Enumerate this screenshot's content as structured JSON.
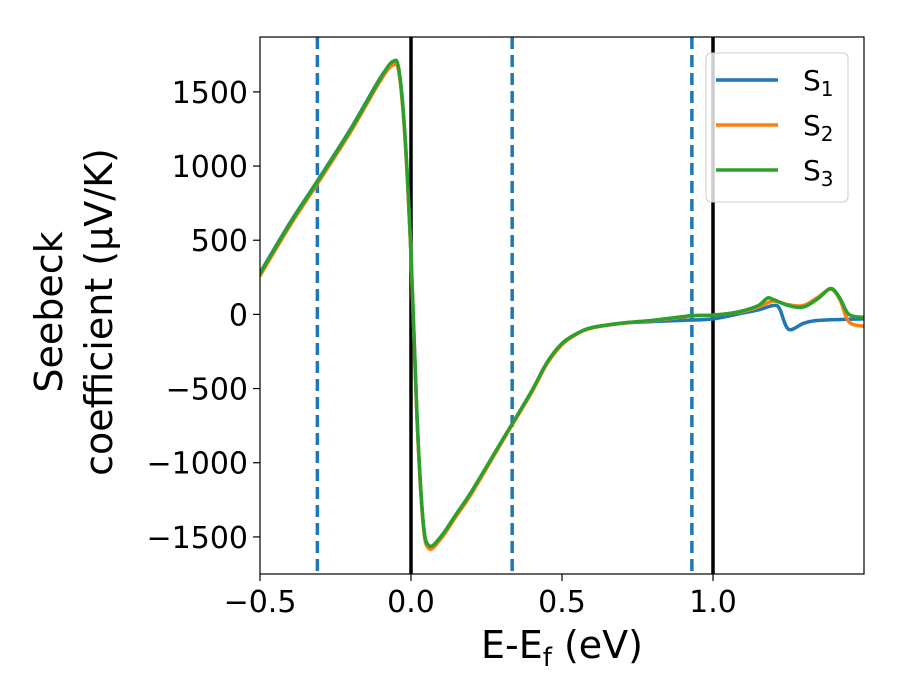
{
  "chart_data": {
    "type": "line",
    "xlabel": "E-E",
    "xlabel_sub": "f",
    "xlabel_unit": " (eV)",
    "ylabel_line1": "Seebeck",
    "ylabel_line2": "coefficient  (μV/K)",
    "xlim": [
      -0.5,
      1.5
    ],
    "ylim": [
      -1750,
      1870
    ],
    "x_ticks": [
      -0.5,
      0.0,
      0.5,
      1.0
    ],
    "x_tick_labels": [
      "−0.5",
      "0.0",
      "0.5",
      "1.0"
    ],
    "y_ticks": [
      1500,
      1000,
      500,
      0,
      -500,
      -1000,
      -1500
    ],
    "y_tick_labels": [
      "1500",
      "1000",
      "500",
      "0",
      "−500",
      "−1000",
      "−1500"
    ],
    "grid": false,
    "legend_position": "top-right",
    "vlines_solid": [
      0.0,
      1.0
    ],
    "vlines_dashed": [
      -0.31,
      0.335,
      0.93
    ],
    "vline_solid_color": "#000000",
    "vline_dashed_color": "#1f77b4",
    "series": [
      {
        "name": "S",
        "name_sub": "1",
        "color": "#1f77b4",
        "points": [
          [
            -0.5,
            280
          ],
          [
            -0.4,
            620
          ],
          [
            -0.31,
            900
          ],
          [
            -0.2,
            1250
          ],
          [
            -0.1,
            1600
          ],
          [
            -0.06,
            1690
          ],
          [
            -0.04,
            1640
          ],
          [
            -0.02,
            1200
          ],
          [
            0.0,
            400
          ],
          [
            0.02,
            -700
          ],
          [
            0.04,
            -1400
          ],
          [
            0.06,
            -1570
          ],
          [
            0.1,
            -1500
          ],
          [
            0.15,
            -1350
          ],
          [
            0.2,
            -1200
          ],
          [
            0.3,
            -860
          ],
          [
            0.335,
            -740
          ],
          [
            0.4,
            -520
          ],
          [
            0.45,
            -330
          ],
          [
            0.5,
            -200
          ],
          [
            0.55,
            -130
          ],
          [
            0.6,
            -90
          ],
          [
            0.7,
            -60
          ],
          [
            0.8,
            -48
          ],
          [
            0.9,
            -40
          ],
          [
            1.0,
            -30
          ],
          [
            1.1,
            10
          ],
          [
            1.15,
            30
          ],
          [
            1.2,
            60
          ],
          [
            1.22,
            40
          ],
          [
            1.25,
            -100
          ],
          [
            1.3,
            -60
          ],
          [
            1.35,
            -40
          ],
          [
            1.5,
            -30
          ]
        ]
      },
      {
        "name": "S",
        "name_sub": "2",
        "color": "#ff7f0e",
        "points": [
          [
            -0.5,
            260
          ],
          [
            -0.4,
            600
          ],
          [
            -0.31,
            880
          ],
          [
            -0.2,
            1230
          ],
          [
            -0.1,
            1580
          ],
          [
            -0.06,
            1680
          ],
          [
            -0.04,
            1630
          ],
          [
            -0.02,
            1190
          ],
          [
            0.0,
            390
          ],
          [
            0.02,
            -710
          ],
          [
            0.04,
            -1410
          ],
          [
            0.06,
            -1580
          ],
          [
            0.1,
            -1510
          ],
          [
            0.15,
            -1360
          ],
          [
            0.2,
            -1210
          ],
          [
            0.3,
            -865
          ],
          [
            0.335,
            -745
          ],
          [
            0.4,
            -525
          ],
          [
            0.45,
            -335
          ],
          [
            0.5,
            -205
          ],
          [
            0.55,
            -132
          ],
          [
            0.6,
            -92
          ],
          [
            0.7,
            -60
          ],
          [
            0.8,
            -42
          ],
          [
            0.9,
            -18
          ],
          [
            0.93,
            -10
          ],
          [
            1.0,
            -5
          ],
          [
            1.05,
            5
          ],
          [
            1.1,
            20
          ],
          [
            1.15,
            50
          ],
          [
            1.2,
            90
          ],
          [
            1.25,
            65
          ],
          [
            1.3,
            60
          ],
          [
            1.35,
            120
          ],
          [
            1.39,
            170
          ],
          [
            1.42,
            100
          ],
          [
            1.45,
            -50
          ],
          [
            1.5,
            -80
          ]
        ]
      },
      {
        "name": "S",
        "name_sub": "3",
        "color": "#2ca02c",
        "points": [
          [
            -0.5,
            275
          ],
          [
            -0.4,
            615
          ],
          [
            -0.31,
            895
          ],
          [
            -0.2,
            1245
          ],
          [
            -0.1,
            1595
          ],
          [
            -0.06,
            1705
          ],
          [
            -0.04,
            1650
          ],
          [
            -0.02,
            1210
          ],
          [
            0.0,
            410
          ],
          [
            0.02,
            -690
          ],
          [
            0.04,
            -1390
          ],
          [
            0.06,
            -1560
          ],
          [
            0.1,
            -1495
          ],
          [
            0.15,
            -1345
          ],
          [
            0.2,
            -1195
          ],
          [
            0.3,
            -855
          ],
          [
            0.335,
            -738
          ],
          [
            0.4,
            -515
          ],
          [
            0.45,
            -325
          ],
          [
            0.5,
            -195
          ],
          [
            0.55,
            -128
          ],
          [
            0.6,
            -88
          ],
          [
            0.7,
            -58
          ],
          [
            0.8,
            -40
          ],
          [
            0.9,
            -15
          ],
          [
            0.93,
            -8
          ],
          [
            1.0,
            -5
          ],
          [
            1.05,
            5
          ],
          [
            1.1,
            25
          ],
          [
            1.15,
            60
          ],
          [
            1.18,
            110
          ],
          [
            1.2,
            100
          ],
          [
            1.25,
            60
          ],
          [
            1.3,
            50
          ],
          [
            1.35,
            110
          ],
          [
            1.39,
            175
          ],
          [
            1.42,
            110
          ],
          [
            1.45,
            0
          ],
          [
            1.5,
            -20
          ]
        ]
      }
    ]
  }
}
